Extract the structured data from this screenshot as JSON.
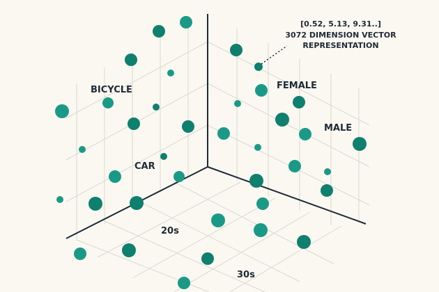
{
  "colors": {
    "background": "#fbf8f1",
    "axis": "#1e2a36",
    "grid": "#d8d8d4",
    "point": "#1a9a86",
    "point_dark": "#0f7f6e",
    "text": "#1e2a36"
  },
  "labels": {
    "bicycle": "BICYCLE",
    "car": "CAR",
    "female": "FEMALE",
    "male": "MALE",
    "age_20s": "20s",
    "age_30s": "30s"
  },
  "annotation": {
    "vector_values": "[0.52, 5.13, 9.31..]",
    "dimension_line": "3072 DIMENSION VECTOR",
    "representation_line": "REPRESENTATION"
  }
}
